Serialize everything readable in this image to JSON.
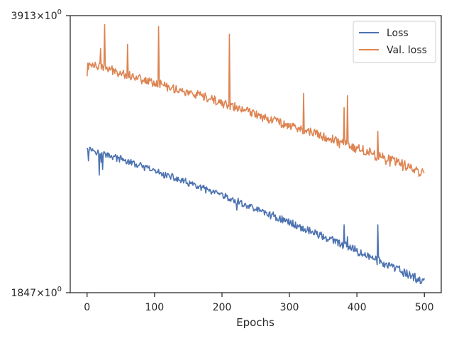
{
  "chart_data": {
    "type": "line",
    "title": "",
    "xlabel": "Epochs",
    "ylabel": "",
    "xlim": [
      -25,
      525
    ],
    "ylim": [
      1847,
      3913
    ],
    "y_scale": "log",
    "grid": false,
    "legend_position": "top-right",
    "x_ticks": [
      0,
      100,
      200,
      300,
      400,
      500
    ],
    "y_tick_labels": [
      {
        "value": 3913,
        "mantissa": "3913",
        "times": "×",
        "base": "10",
        "exp": "0"
      },
      {
        "value": 1847,
        "mantissa": "1847",
        "times": "×",
        "base": "10",
        "exp": "0"
      }
    ],
    "series": [
      {
        "name": "Loss",
        "color": "#4c72b0",
        "start_value": 2735,
        "end_value": 1900,
        "noise": 22,
        "spikes": [
          [
            18,
            2540
          ],
          [
            21,
            2630
          ],
          [
            23,
            2580
          ],
          [
            27,
            2690
          ],
          [
            106,
            2580
          ],
          [
            211,
            2370
          ],
          [
            222,
            2310
          ],
          [
            321,
            2180
          ],
          [
            381,
            2220
          ],
          [
            386,
            2150
          ],
          [
            431,
            2220
          ]
        ]
      },
      {
        "name": "Val. loss",
        "color": "#dd8452",
        "start_value": 3440,
        "end_value": 2555,
        "noise": 35,
        "spikes": [
          [
            20,
            3580
          ],
          [
            26,
            3820
          ],
          [
            60,
            3620
          ],
          [
            106,
            3800
          ],
          [
            211,
            3720
          ],
          [
            321,
            3170
          ],
          [
            381,
            3050
          ],
          [
            386,
            3150
          ],
          [
            431,
            2860
          ]
        ]
      }
    ]
  }
}
